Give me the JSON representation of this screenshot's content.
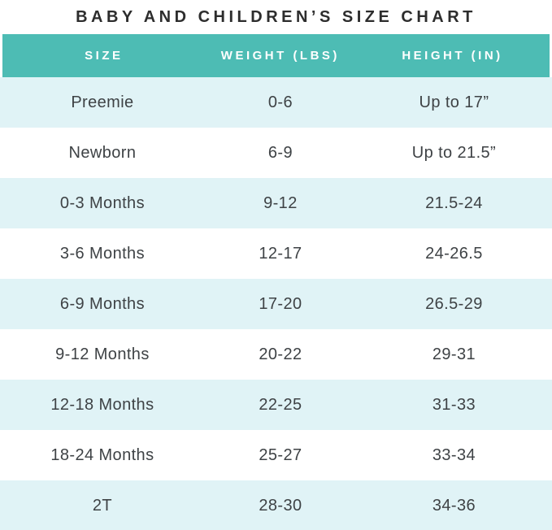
{
  "title": "BABY AND CHILDREN’S SIZE CHART",
  "colors": {
    "header_bg": "#4dbcb4",
    "header_text": "#ffffff",
    "row_alt_bg": "#e0f3f6",
    "row_bg": "#ffffff",
    "title_text": "#2d2d2d",
    "cell_text": "#3e4245"
  },
  "chart_data": {
    "type": "table",
    "title": "BABY AND CHILDREN’S SIZE CHART",
    "columns": [
      "SIZE",
      "WEIGHT (LBS)",
      "HEIGHT (IN)"
    ],
    "rows": [
      [
        "Preemie",
        "0-6",
        "Up to 17”"
      ],
      [
        "Newborn",
        "6-9",
        "Up to 21.5”"
      ],
      [
        "0-3 Months",
        "9-12",
        "21.5-24"
      ],
      [
        "3-6 Months",
        "12-17",
        "24-26.5"
      ],
      [
        "6-9 Months",
        "17-20",
        "26.5-29"
      ],
      [
        "9-12 Months",
        "20-22",
        "29-31"
      ],
      [
        "12-18 Months",
        "22-25",
        "31-33"
      ],
      [
        "18-24 Months",
        "25-27",
        "33-34"
      ],
      [
        "2T",
        "28-30",
        "34-36"
      ]
    ]
  }
}
